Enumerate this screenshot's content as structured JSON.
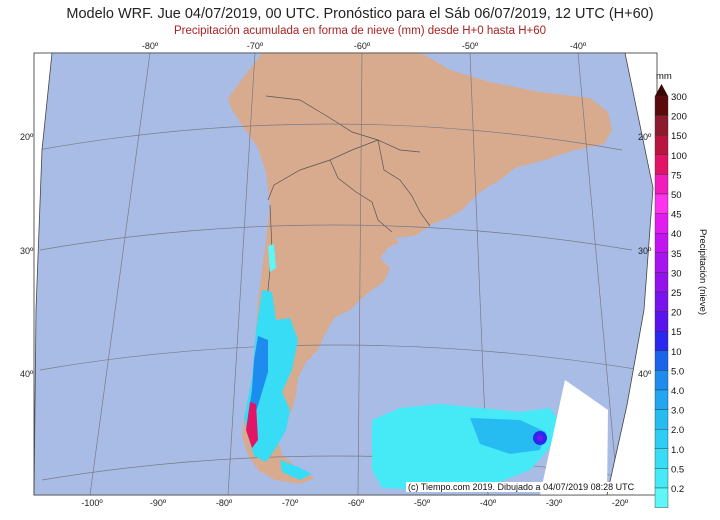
{
  "header": {
    "title": "Modelo WRF. Jue 04/07/2019, 00 UTC. Pronóstico para el Sáb 06/07/2019, 12 UTC (H+60)",
    "subtitle": "Precipitación acumulada en forma de nieve (mm) desde H+0 hasta H+60"
  },
  "map": {
    "top_lon_labels": [
      "-80º",
      "-70º",
      "-60º",
      "-50º",
      "-40º"
    ],
    "bottom_lon_labels": [
      "-100º",
      "-90º",
      "-80º",
      "-70º",
      "-60º",
      "-50º",
      "-40º",
      "-30º",
      "-20º"
    ],
    "left_lat_labels": [
      "20º",
      "30º",
      "40º"
    ],
    "right_lat_labels": [
      "20º",
      "30º",
      "40º"
    ],
    "ocean_color": "#a9bce6",
    "land_color": "#d8ab8e",
    "credit": "(c) Tiempo.com 2019. Dibujado a 04/07/2019 08:28 UTC"
  },
  "legend": {
    "unit": "mm",
    "axis_title": "Precipitación (nieve)",
    "levels": [
      "300",
      "200",
      "150",
      "100",
      "75",
      "50",
      "45",
      "40",
      "35",
      "30",
      "25",
      "20",
      "15",
      "10",
      "5.0",
      "4.0",
      "3.0",
      "2.0",
      "1.0",
      "0.5",
      "0.2"
    ],
    "colors": [
      "#5a0a0a",
      "#8e1a2e",
      "#b8163e",
      "#e21466",
      "#f21ebc",
      "#ff33ee",
      "#e21cf0",
      "#c214f0",
      "#a814ee",
      "#9412ec",
      "#7a12ee",
      "#5a12ee",
      "#2a28ee",
      "#1a64ea",
      "#1e8cee",
      "#22a6f0",
      "#26bcf2",
      "#2ecef4",
      "#38dcf4",
      "#46eaf6",
      "#5ef6f6"
    ]
  }
}
